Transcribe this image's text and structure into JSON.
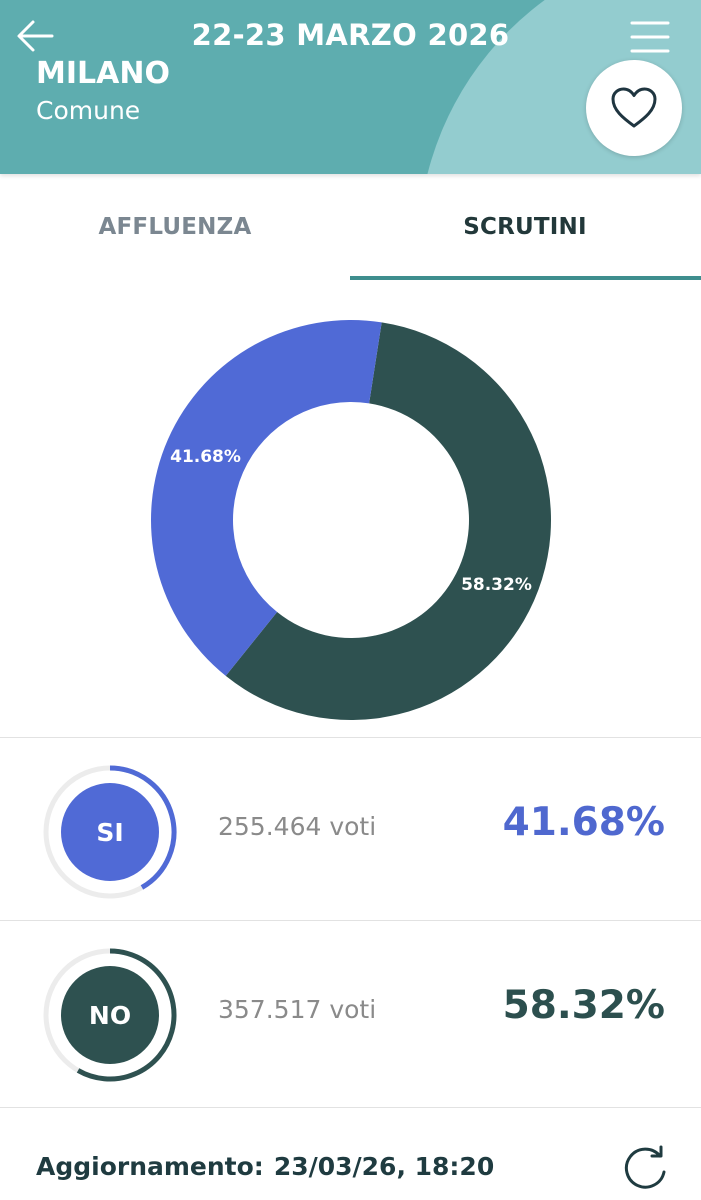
{
  "header": {
    "date": "22-23 MARZO 2026",
    "city": "MILANO",
    "city_type": "Comune",
    "icons": {
      "back": "arrow-left-icon",
      "menu": "hamburger-menu-icon",
      "favorite": "heart-icon"
    }
  },
  "tabs": [
    {
      "label": "AFFLUENZA",
      "active": false
    },
    {
      "label": "SCRUTINI",
      "active": true
    }
  ],
  "colors": {
    "header": "#5eadaf",
    "si": "#506ad6",
    "no": "#2e5150",
    "tab_indicator": "#3e8e8e"
  },
  "chart_data": {
    "type": "pie",
    "donut": true,
    "categories": [
      "NO",
      "SI"
    ],
    "values": [
      58.32,
      41.68
    ],
    "labels": [
      "58.32%",
      "41.68%"
    ]
  },
  "results": [
    {
      "label": "SI",
      "votes": "255.464 voti",
      "percent": "41.68%",
      "fraction": 0.4168
    },
    {
      "label": "NO",
      "votes": "357.517 voti",
      "percent": "58.32%",
      "fraction": 0.5832
    }
  ],
  "footer": {
    "update_label": "Aggiornamento:",
    "update_value": "23/03/26, 18:20",
    "refresh_icon": "refresh-icon"
  }
}
